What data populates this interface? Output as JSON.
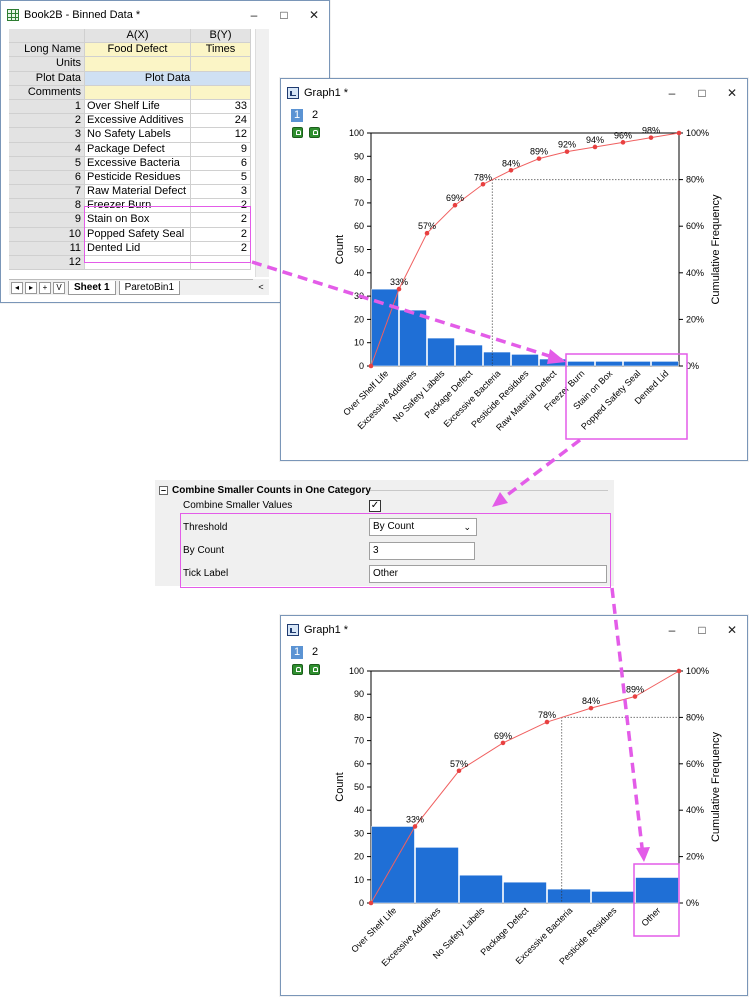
{
  "worksheet": {
    "title": "Book2B - Binned Data *",
    "col_headers": [
      "A(X)",
      "B(Y)"
    ],
    "meta_rows": [
      {
        "label": "Long Name",
        "a": "Food Defect",
        "b": "Times"
      },
      {
        "label": "Units",
        "a": "",
        "b": ""
      },
      {
        "label": "Plot Data",
        "a": "Plot Data",
        "b": ""
      },
      {
        "label": "Comments",
        "a": "",
        "b": ""
      }
    ],
    "rows": [
      {
        "n": "1",
        "a": "Over Shelf Life",
        "b": "33"
      },
      {
        "n": "2",
        "a": "Excessive Additives",
        "b": "24"
      },
      {
        "n": "3",
        "a": "No Safety Labels",
        "b": "12"
      },
      {
        "n": "4",
        "a": "Package Defect",
        "b": "9"
      },
      {
        "n": "5",
        "a": "Excessive Bacteria",
        "b": "6"
      },
      {
        "n": "6",
        "a": "Pesticide Residues",
        "b": "5"
      },
      {
        "n": "7",
        "a": "Raw Material Defect",
        "b": "3"
      },
      {
        "n": "8",
        "a": "Freezer Burn",
        "b": "2"
      },
      {
        "n": "9",
        "a": "Stain on Box",
        "b": "2"
      },
      {
        "n": "10",
        "a": "Popped Safety Seal",
        "b": "2"
      },
      {
        "n": "11",
        "a": "Dented Lid",
        "b": "2"
      },
      {
        "n": "12",
        "a": "",
        "b": ""
      }
    ],
    "nav_buttons": [
      "◂",
      "▸",
      "+",
      "V"
    ],
    "tabs": [
      "Sheet 1",
      "ParetoBin1"
    ]
  },
  "graph1": {
    "title": "Graph1 *",
    "layer_tabs": [
      "1",
      "2"
    ],
    "window_controls": [
      "–",
      "□",
      "✕"
    ]
  },
  "graph2": {
    "title": "Graph1 *",
    "layer_tabs": [
      "1",
      "2"
    ],
    "window_controls": [
      "–",
      "□",
      "✕"
    ]
  },
  "settings": {
    "section_title": "Combine Smaller Counts in One Category",
    "collapse_symbol": "–",
    "combine_label": "Combine Smaller Values",
    "combine_checked": true,
    "threshold_label": "Threshold",
    "threshold_value": "By Count",
    "bycount_label": "By Count",
    "bycount_value": "3",
    "ticklabel_label": "Tick Label",
    "ticklabel_value": "Other"
  },
  "colors": {
    "bar": "#1f6fd6",
    "line": "#f06060",
    "highlight": "#e35ce8"
  },
  "chart_data": [
    {
      "type": "bar",
      "categories": [
        "Over Shelf Life",
        "Excessive Additives",
        "No Safety Labels",
        "Package Defect",
        "Excessive Bacteria",
        "Pesticide Residues",
        "Raw Material Defect",
        "Freezer Burn",
        "Stain on Box",
        "Popped Safety Seal",
        "Dented Lid"
      ],
      "values": [
        33,
        24,
        12,
        9,
        6,
        5,
        3,
        2,
        2,
        2,
        2
      ],
      "cumulative": [
        0,
        33,
        57,
        69,
        78,
        84,
        89,
        92,
        94,
        96,
        98,
        100
      ],
      "cumulative_labels": [
        "33%",
        "57%",
        "69%",
        "78%",
        "84%",
        "89%",
        "92%",
        "94%",
        "96%",
        "98%"
      ],
      "cutoff_cumulative": 80,
      "ylabel": "Count",
      "y2label": "Cumulative Frequency",
      "ylim": [
        0,
        100
      ],
      "yticks": [
        "0",
        "10",
        "20",
        "30",
        "40",
        "50",
        "60",
        "70",
        "80",
        "90",
        "100"
      ],
      "y2ticks": [
        "0%",
        "20%",
        "40%",
        "60%",
        "80%",
        "100%"
      ]
    },
    {
      "type": "bar",
      "categories": [
        "Over Shelf Life",
        "Excessive Additives",
        "No Safety Labels",
        "Package Defect",
        "Excessive Bacteria",
        "Pesticide Residues",
        "Other"
      ],
      "values": [
        33,
        24,
        12,
        9,
        6,
        5,
        11
      ],
      "cumulative": [
        0,
        33,
        57,
        69,
        78,
        84,
        89,
        100
      ],
      "cumulative_labels": [
        "33%",
        "57%",
        "69%",
        "78%",
        "84%",
        "89%"
      ],
      "cutoff_cumulative": 80,
      "ylabel": "Count",
      "y2label": "Cumulative Frequency",
      "ylim": [
        0,
        100
      ],
      "yticks": [
        "0",
        "10",
        "20",
        "30",
        "40",
        "50",
        "60",
        "70",
        "80",
        "90",
        "100"
      ],
      "y2ticks": [
        "0%",
        "20%",
        "40%",
        "60%",
        "80%",
        "100%"
      ]
    }
  ]
}
